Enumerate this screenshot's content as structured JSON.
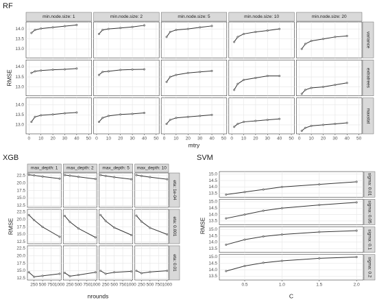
{
  "chart_data": [
    {
      "type": "line",
      "title": "RF",
      "xlabel": "mtry",
      "ylabel": "RMSE",
      "color": "#333333",
      "grid": true,
      "columns": [
        "min.node.size: 1",
        "min.node.size: 2",
        "min.node.size: 5",
        "min.node.size: 10",
        "min.node.size: 20"
      ],
      "rows": [
        "variance",
        "extratrees",
        "maxstat"
      ],
      "x": [
        2,
        5,
        10,
        20,
        30,
        40
      ],
      "xlim": [
        -2.5,
        52.5
      ],
      "xticks": [
        0,
        10,
        20,
        30,
        40,
        50
      ],
      "ylim": [
        12.55,
        14.35
      ],
      "yticks": [
        {
          "value": 13,
          "label": "13.0"
        },
        13.5,
        {
          "value": 14,
          "label": "14.0"
        }
      ],
      "values": [
        [
          [
            13.8,
            13.95,
            14.02,
            14.08,
            14.14,
            14.2
          ],
          [
            13.75,
            13.95,
            14.0,
            14.05,
            14.1,
            14.18
          ],
          [
            13.6,
            13.85,
            13.95,
            14.0,
            14.08,
            14.15
          ],
          [
            13.35,
            13.6,
            13.75,
            13.85,
            13.92,
            14.0
          ],
          [
            13.0,
            13.25,
            13.4,
            13.5,
            13.6,
            13.65
          ]
        ],
        [
          [
            13.7,
            13.78,
            13.82,
            13.86,
            13.88,
            13.92
          ],
          [
            13.6,
            13.75,
            13.78,
            13.85,
            13.87,
            13.88
          ],
          [
            13.25,
            13.5,
            13.6,
            13.7,
            13.75,
            13.8
          ],
          [
            12.85,
            13.15,
            13.35,
            13.45,
            13.55,
            13.55
          ],
          [
            12.65,
            12.85,
            12.95,
            13.0,
            13.1,
            13.2
          ]
        ],
        [
          [
            13.15,
            13.4,
            13.48,
            13.52,
            13.58,
            13.62
          ],
          [
            13.15,
            13.35,
            13.45,
            13.52,
            13.55,
            13.6
          ],
          [
            13.05,
            13.25,
            13.35,
            13.4,
            13.45,
            13.5
          ],
          [
            12.9,
            13.05,
            13.15,
            13.2,
            13.25,
            13.3
          ],
          [
            12.7,
            12.85,
            12.95,
            13.0,
            13.05,
            13.1
          ]
        ]
      ]
    },
    {
      "type": "line",
      "title": "XGB",
      "xlabel": "nrounds",
      "ylabel": "RMSE",
      "color": "#333333",
      "grid": true,
      "columns": [
        "max_depth: 1",
        "max_depth: 2",
        "max_depth: 5",
        "max_depth: 10"
      ],
      "rows": [
        "eta: 1e-04",
        "eta: 0.001",
        "eta: 0.01"
      ],
      "x": [
        100,
        250,
        500,
        1000
      ],
      "xlim": [
        55,
        1045
      ],
      "xticks": [
        250,
        500,
        750,
        1000
      ],
      "ylim": [
        11.9,
        23.4
      ],
      "yticks": [
        12.5,
        {
          "value": 15,
          "label": "15.0"
        },
        17.5,
        {
          "value": 20,
          "label": "20.0"
        },
        22.5
      ],
      "values": [
        [
          [
            22.8,
            22.6,
            22.2,
            21.5
          ],
          [
            22.7,
            22.5,
            22.1,
            21.4
          ],
          [
            22.7,
            22.4,
            22.0,
            21.3
          ],
          [
            22.7,
            22.4,
            22.0,
            21.3
          ]
        ],
        [
          [
            21.5,
            19.8,
            17.5,
            14.2
          ],
          [
            21.2,
            19.2,
            17.0,
            14.0
          ],
          [
            21.5,
            19.5,
            17.3,
            14.8
          ],
          [
            21.3,
            19.3,
            17.2,
            15.0
          ]
        ],
        [
          [
            14.5,
            13.0,
            13.3,
            14.0
          ],
          [
            14.3,
            13.2,
            13.6,
            14.5
          ],
          [
            15.0,
            14.0,
            14.5,
            14.8
          ],
          [
            15.0,
            14.2,
            14.6,
            15.0
          ]
        ]
      ]
    },
    {
      "type": "line",
      "title": "SVM",
      "xlabel": "C",
      "ylabel": "RMSE",
      "color": "#333333",
      "grid": true,
      "rows": [
        "sigma: 0.01",
        "sigma: 0.05",
        "sigma: 0.1",
        "sigma: 0.2"
      ],
      "x": [
        0.25,
        0.5,
        0.75,
        1,
        1.5,
        2
      ],
      "xlim": [
        0.16,
        2.09
      ],
      "xticks": [
        0.5,
        {
          "value": 1,
          "label": "1.0"
        },
        1.5,
        {
          "value": 2,
          "label": "2.0"
        }
      ],
      "ylim": [
        13.2,
        15.2
      ],
      "yticks": [
        13.5,
        {
          "value": 14,
          "label": "14.0"
        },
        14.5,
        {
          "value": 15,
          "label": "15.0"
        }
      ],
      "values": [
        [
          [
            13.4,
            13.6,
            13.8,
            14.0,
            14.2,
            14.4
          ]
        ],
        [
          [
            13.7,
            14.0,
            14.3,
            14.5,
            14.75,
            14.95
          ]
        ],
        [
          [
            13.8,
            14.2,
            14.45,
            14.6,
            14.8,
            14.9
          ]
        ],
        [
          [
            13.9,
            14.3,
            14.55,
            14.7,
            14.9,
            15.0
          ]
        ]
      ]
    }
  ]
}
